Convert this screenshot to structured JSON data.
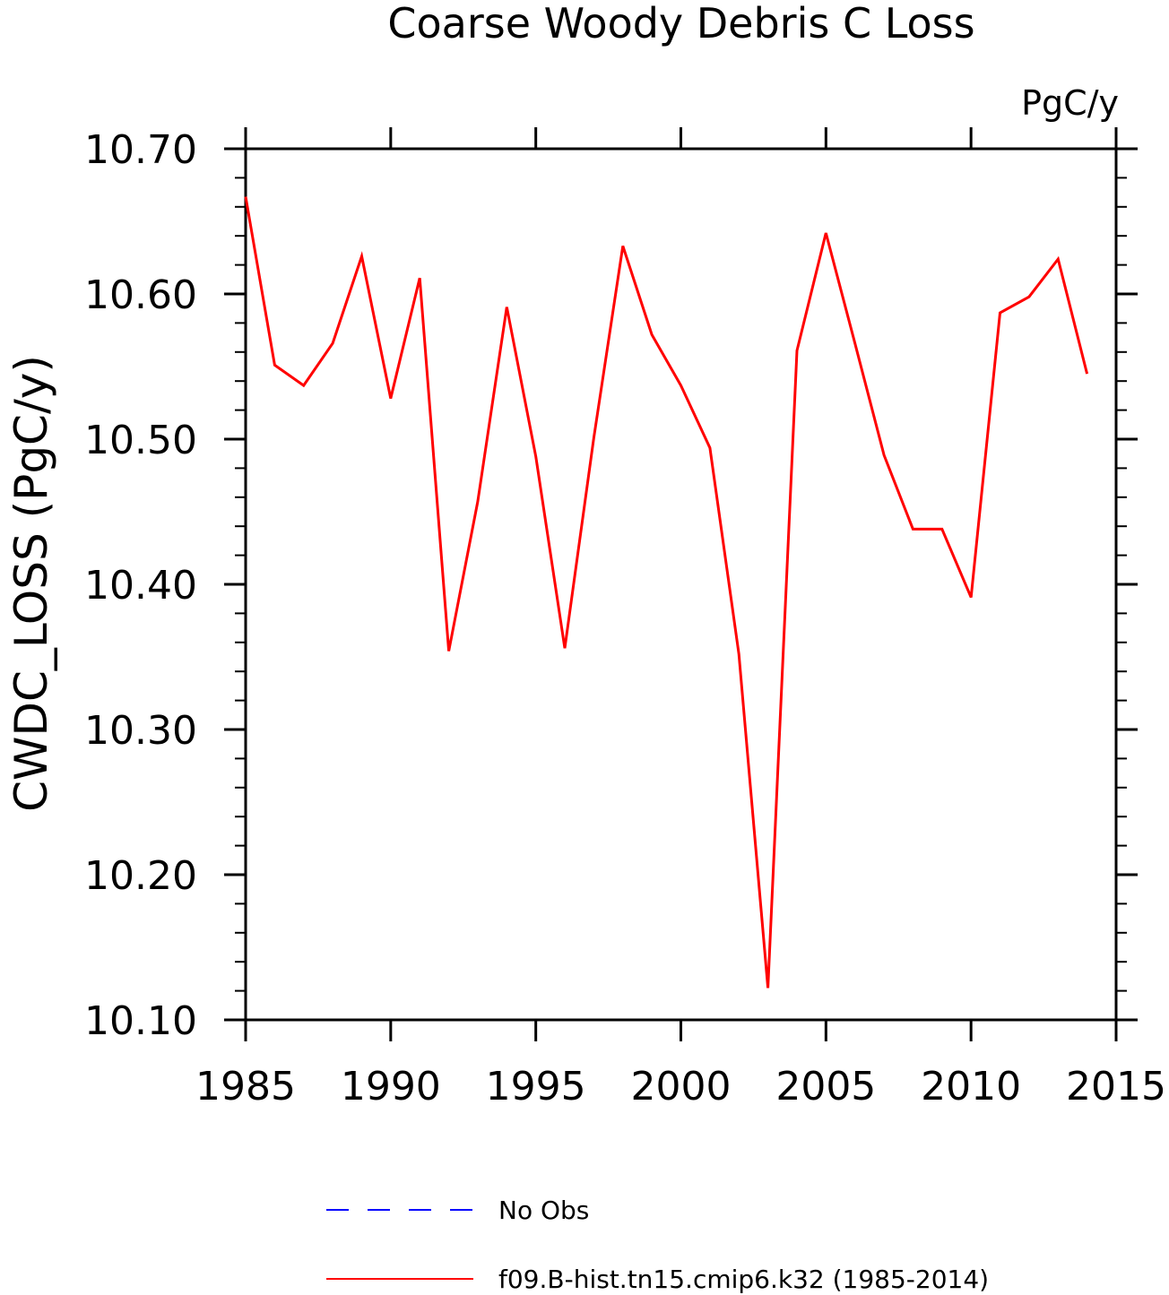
{
  "chart_data": {
    "type": "line",
    "title": "Coarse Woody Debris C Loss",
    "units_label": "PgC/y",
    "ylabel": "CWDC_LOSS  (PgC/y)",
    "xlabel": "",
    "xlim": [
      1985,
      2015
    ],
    "ylim": [
      10.1,
      10.7
    ],
    "x_ticks": [
      "1985",
      "1990",
      "1995",
      "2000",
      "2005",
      "2010",
      "2015"
    ],
    "y_ticks": [
      "10.10",
      "10.20",
      "10.30",
      "10.40",
      "10.50",
      "10.60",
      "10.70"
    ],
    "grid": false,
    "legend_position": "bottom",
    "series": [
      {
        "name": "No Obs",
        "color": "#0000ff",
        "dash": "dashed",
        "x": [],
        "values": []
      },
      {
        "name": "f09.B-hist.tn15.cmip6.k32 (1985-2014)",
        "color": "#ff0000",
        "dash": "solid",
        "x": [
          1985,
          1986,
          1987,
          1988,
          1989,
          1990,
          1991,
          1992,
          1993,
          1994,
          1995,
          1996,
          1997,
          1998,
          1999,
          2000,
          2001,
          2002,
          2003,
          2004,
          2005,
          2006,
          2007,
          2008,
          2009,
          2010,
          2011,
          2012,
          2013,
          2014
        ],
        "values": [
          10.667,
          10.551,
          10.537,
          10.566,
          10.626,
          10.528,
          10.611,
          10.354,
          10.457,
          10.591,
          10.488,
          10.356,
          10.501,
          10.633,
          10.572,
          10.537,
          10.494,
          10.352,
          10.122,
          10.561,
          10.642,
          10.566,
          10.489,
          10.438,
          10.438,
          10.391,
          10.587,
          10.598,
          10.624,
          10.545
        ]
      }
    ]
  }
}
